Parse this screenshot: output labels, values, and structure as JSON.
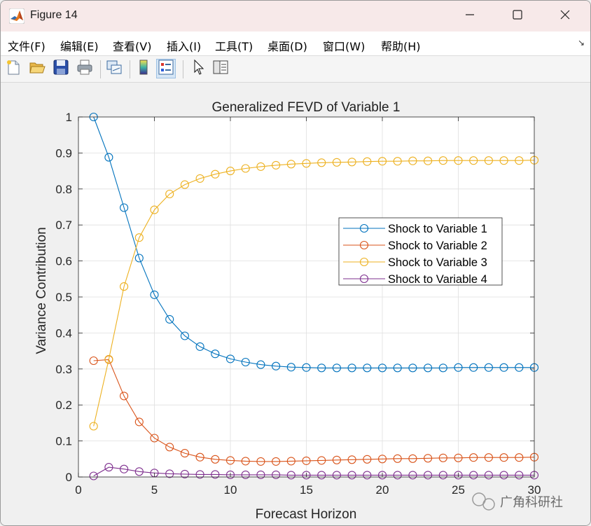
{
  "window": {
    "title": "Figure 14",
    "controls": {
      "minimize": "—",
      "maximize": "☐",
      "close": "✕"
    }
  },
  "menu": {
    "items": [
      {
        "label": "文件(F)"
      },
      {
        "label": "编辑(E)"
      },
      {
        "label": "查看(V)"
      },
      {
        "label": "插入(I)"
      },
      {
        "label": "工具(T)"
      },
      {
        "label": "桌面(D)"
      },
      {
        "label": "窗口(W)"
      },
      {
        "label": "帮助(H)"
      }
    ],
    "corner_glyph": "↘"
  },
  "toolbar": {
    "buttons": [
      "new-figure-icon",
      "open-file-icon",
      "save-icon",
      "print-icon",
      "link-axes-icon",
      "colorbar-icon",
      "legend-icon",
      "pointer-icon",
      "property-inspector-icon"
    ]
  },
  "watermark": {
    "text": "广角科研社"
  },
  "chart_data": {
    "type": "line",
    "title": "Generalized FEVD of Variable 1",
    "xlabel": "Forecast Horizon",
    "ylabel": "Variance Contribution",
    "xlim": [
      0,
      30
    ],
    "ylim": [
      0,
      1
    ],
    "xticks": [
      "0",
      "5",
      "10",
      "15",
      "20",
      "25",
      "30"
    ],
    "yticks": [
      "0",
      "0.1",
      "0.2",
      "0.3",
      "0.4",
      "0.5",
      "0.6",
      "0.7",
      "0.8",
      "0.9",
      "1"
    ],
    "grid": true,
    "legend_position": "right-middle",
    "x": [
      1,
      2,
      3,
      4,
      5,
      6,
      7,
      8,
      9,
      10,
      11,
      12,
      13,
      14,
      15,
      16,
      17,
      18,
      19,
      20,
      21,
      22,
      23,
      24,
      25,
      26,
      27,
      28,
      29,
      30
    ],
    "series": [
      {
        "name": "Shock to Variable 1",
        "color": "#0072bd",
        "values": [
          1.0,
          0.888,
          0.748,
          0.608,
          0.506,
          0.438,
          0.392,
          0.362,
          0.342,
          0.328,
          0.319,
          0.312,
          0.308,
          0.305,
          0.304,
          0.303,
          0.303,
          0.303,
          0.303,
          0.303,
          0.303,
          0.303,
          0.303,
          0.303,
          0.304,
          0.304,
          0.304,
          0.304,
          0.304,
          0.304
        ]
      },
      {
        "name": "Shock to Variable 2",
        "color": "#d95319",
        "values": [
          0.323,
          0.326,
          0.225,
          0.153,
          0.108,
          0.083,
          0.066,
          0.055,
          0.049,
          0.046,
          0.044,
          0.043,
          0.043,
          0.044,
          0.045,
          0.046,
          0.047,
          0.048,
          0.049,
          0.05,
          0.051,
          0.051,
          0.052,
          0.053,
          0.053,
          0.054,
          0.054,
          0.054,
          0.054,
          0.055
        ]
      },
      {
        "name": "Shock to Variable 3",
        "color": "#edb120",
        "values": [
          0.141,
          0.327,
          0.529,
          0.665,
          0.742,
          0.786,
          0.812,
          0.829,
          0.841,
          0.85,
          0.857,
          0.862,
          0.866,
          0.869,
          0.871,
          0.873,
          0.874,
          0.875,
          0.876,
          0.877,
          0.877,
          0.878,
          0.878,
          0.879,
          0.879,
          0.879,
          0.879,
          0.879,
          0.879,
          0.88
        ]
      },
      {
        "name": "Shock to Variable 4",
        "color": "#7e2f8e",
        "values": [
          0.003,
          0.027,
          0.022,
          0.015,
          0.011,
          0.009,
          0.008,
          0.007,
          0.007,
          0.006,
          0.006,
          0.006,
          0.006,
          0.005,
          0.005,
          0.005,
          0.005,
          0.005,
          0.005,
          0.005,
          0.005,
          0.005,
          0.005,
          0.005,
          0.005,
          0.005,
          0.005,
          0.005,
          0.005,
          0.005
        ]
      }
    ]
  }
}
